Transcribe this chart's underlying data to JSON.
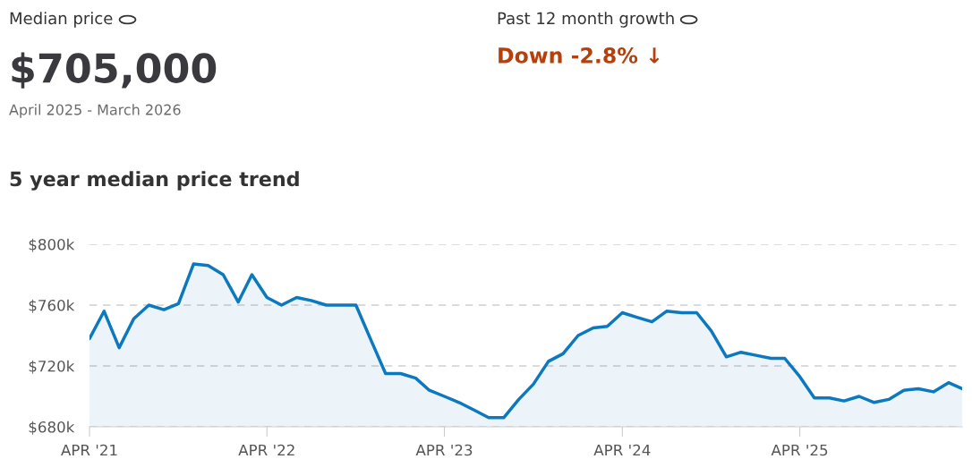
{
  "chart_data": {
    "type": "area",
    "title": "5 year median price trend",
    "annotations": [
      "Median price",
      "$705,000",
      "April 2025 - March 2026",
      "Past 12 month growth",
      "Down -2.8% ↓"
    ],
    "x": [
      "2021-04",
      "2021-05",
      "2021-06",
      "2021-07",
      "2021-08",
      "2021-09",
      "2021-10",
      "2021-11",
      "2021-12",
      "2022-01",
      "2022-02",
      "2022-03",
      "2022-04",
      "2022-05",
      "2022-06",
      "2022-07",
      "2022-08",
      "2022-09",
      "2022-10",
      "2022-11",
      "2022-12",
      "2023-01",
      "2023-02",
      "2023-03",
      "2023-04",
      "2023-05",
      "2023-06",
      "2023-07",
      "2023-08",
      "2023-09",
      "2023-10",
      "2023-11",
      "2023-12",
      "2024-01",
      "2024-02",
      "2024-03",
      "2024-04",
      "2024-05",
      "2024-06",
      "2024-07",
      "2024-08",
      "2024-09",
      "2024-10",
      "2024-11",
      "2024-12",
      "2025-01",
      "2025-02",
      "2025-03",
      "2025-04",
      "2025-05",
      "2025-06",
      "2025-07",
      "2025-08",
      "2025-09",
      "2025-10",
      "2025-11",
      "2025-12",
      "2026-01",
      "2026-02",
      "2026-03"
    ],
    "series": [
      {
        "color": "#0b78bf",
        "values": [
          738,
          756,
          732,
          751,
          760,
          757,
          761,
          787,
          786,
          780,
          762,
          780,
          765,
          760,
          765,
          763,
          760,
          760,
          760,
          737,
          715,
          715,
          712,
          704,
          700,
          696,
          691,
          686,
          686,
          698,
          708,
          723,
          728,
          740,
          745,
          746,
          755,
          752,
          749,
          756,
          755,
          755,
          743,
          726,
          729,
          727,
          725,
          725,
          713,
          699,
          699,
          697,
          700,
          696,
          698,
          704,
          705,
          703,
          709,
          705
        ]
      }
    ],
    "xlim": [
      "2021-04",
      "2026-03"
    ],
    "xticks": [
      {
        "value": "2021-04",
        "label": "APR '21"
      },
      {
        "value": "2022-04",
        "label": "APR '22"
      },
      {
        "value": "2023-04",
        "label": "APR '23"
      },
      {
        "value": "2024-04",
        "label": "APR '24"
      },
      {
        "value": "2025-04",
        "label": "APR '25"
      }
    ],
    "ylim": [
      680,
      800
    ],
    "yticks": [
      {
        "value": 680,
        "label": "$680k"
      },
      {
        "value": 720,
        "label": "$720k"
      },
      {
        "value": 760,
        "label": "$760k"
      },
      {
        "value": 800,
        "label": "$800k"
      }
    ],
    "grid": "y",
    "legend": false
  }
}
